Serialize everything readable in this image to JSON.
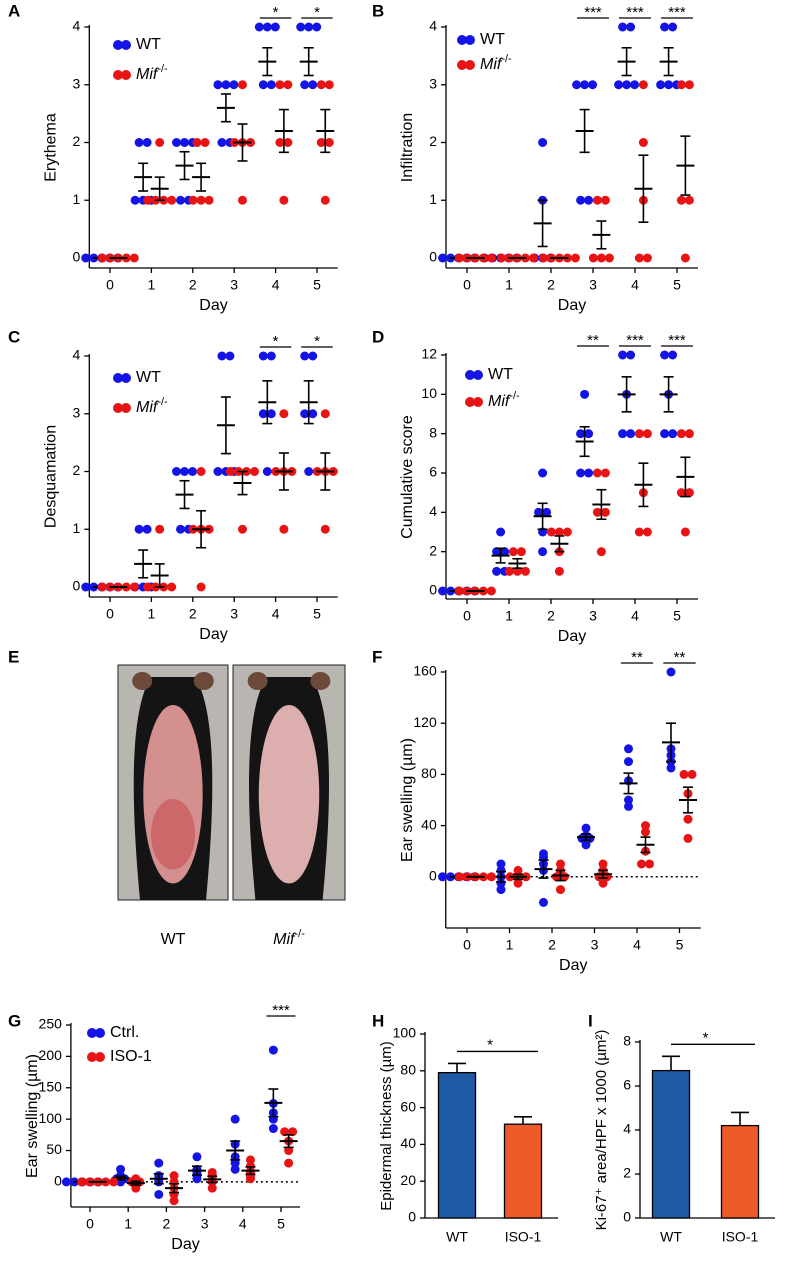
{
  "chart_data": [
    {
      "type": "scatter",
      "panel": "A",
      "ylabel": "Erythema",
      "xlabel": "Day",
      "categories": [
        "0",
        "1",
        "2",
        "3",
        "4",
        "5"
      ],
      "ylim": [
        0,
        4
      ],
      "yticks": [
        0,
        1,
        2,
        3,
        4
      ],
      "series": [
        {
          "name": "WT",
          "color": "#1414e6",
          "points": [
            [
              0,
              0,
              0,
              0,
              0
            ],
            [
              1,
              1,
              1,
              2,
              2
            ],
            [
              1,
              1,
              2,
              2,
              2
            ],
            [
              2,
              2,
              3,
              3,
              3
            ],
            [
              3,
              3,
              4,
              4,
              4
            ],
            [
              3,
              3,
              4,
              4,
              4
            ]
          ],
          "mean": [
            0,
            1.4,
            1.6,
            2.6,
            3.4,
            3.4
          ],
          "sem": [
            0,
            0.24,
            0.24,
            0.24,
            0.24,
            0.24
          ]
        },
        {
          "name": "Mif",
          "superscript": "-/-",
          "color": "#e81414",
          "points": [
            [
              0,
              0,
              0,
              0,
              0
            ],
            [
              1,
              1,
              1,
              1,
              2
            ],
            [
              1,
              1,
              1,
              2,
              2
            ],
            [
              1,
              2,
              2,
              2,
              3
            ],
            [
              1,
              2,
              2,
              3,
              3
            ],
            [
              1,
              2,
              2,
              3,
              3
            ]
          ],
          "mean": [
            0,
            1.2,
            1.4,
            2.0,
            2.2,
            2.2
          ],
          "sem": [
            0,
            0.2,
            0.24,
            0.32,
            0.37,
            0.37
          ]
        }
      ],
      "significance": [
        null,
        null,
        null,
        null,
        "*",
        "*"
      ]
    },
    {
      "type": "scatter",
      "panel": "B",
      "ylabel": "Infiltration",
      "xlabel": "Day",
      "categories": [
        "0",
        "1",
        "2",
        "3",
        "4",
        "5"
      ],
      "ylim": [
        0,
        4
      ],
      "yticks": [
        0,
        1,
        2,
        3,
        4
      ],
      "series": [
        {
          "name": "WT",
          "color": "#1414e6",
          "points": [
            [
              0,
              0,
              0,
              0,
              0
            ],
            [
              0,
              0,
              0,
              0,
              0
            ],
            [
              0,
              0,
              0,
              1,
              2
            ],
            [
              1,
              1,
              3,
              3,
              3
            ],
            [
              3,
              3,
              3,
              4,
              4
            ],
            [
              3,
              3,
              3,
              4,
              4
            ]
          ],
          "mean": [
            0,
            0,
            0.6,
            2.2,
            3.4,
            3.4
          ],
          "sem": [
            0,
            0,
            0.4,
            0.37,
            0.24,
            0.24
          ]
        },
        {
          "name": "Mif",
          "superscript": "-/-",
          "color": "#e81414",
          "points": [
            [
              0,
              0,
              0,
              0,
              0
            ],
            [
              0,
              0,
              0,
              0,
              0
            ],
            [
              0,
              0,
              0,
              0,
              0
            ],
            [
              0,
              0,
              0,
              1,
              1
            ],
            [
              0,
              0,
              1,
              2,
              3
            ],
            [
              0,
              1,
              1,
              3,
              3
            ]
          ],
          "mean": [
            0,
            0,
            0,
            0.4,
            1.2,
            1.6
          ],
          "sem": [
            0,
            0,
            0,
            0.24,
            0.58,
            0.51
          ]
        }
      ],
      "significance": [
        null,
        null,
        null,
        "***",
        "***",
        "***"
      ]
    },
    {
      "type": "scatter",
      "panel": "C",
      "ylabel": "Desquamation",
      "xlabel": "Day",
      "categories": [
        "0",
        "1",
        "2",
        "3",
        "4",
        "5"
      ],
      "ylim": [
        0,
        4
      ],
      "yticks": [
        0,
        1,
        2,
        3,
        4
      ],
      "series": [
        {
          "name": "WT",
          "color": "#1414e6",
          "points": [
            [
              0,
              0,
              0,
              0,
              0
            ],
            [
              0,
              0,
              0,
              1,
              1
            ],
            [
              1,
              1,
              2,
              2,
              2
            ],
            [
              2,
              2,
              2,
              4,
              4
            ],
            [
              2,
              3,
              3,
              4,
              4
            ],
            [
              2,
              3,
              3,
              4,
              4
            ]
          ],
          "mean": [
            0,
            0.4,
            1.6,
            2.8,
            3.2,
            3.2
          ],
          "sem": [
            0,
            0.24,
            0.24,
            0.49,
            0.37,
            0.37
          ]
        },
        {
          "name": "Mif",
          "superscript": "-/-",
          "color": "#e81414",
          "points": [
            [
              0,
              0,
              0,
              0,
              0
            ],
            [
              0,
              0,
              0,
              0,
              1
            ],
            [
              0,
              1,
              1,
              1,
              2
            ],
            [
              1,
              2,
              2,
              2,
              2
            ],
            [
              1,
              2,
              2,
              2,
              3
            ],
            [
              1,
              2,
              2,
              2,
              3
            ]
          ],
          "mean": [
            0,
            0.2,
            1.0,
            1.8,
            2.0,
            2.0
          ],
          "sem": [
            0,
            0.2,
            0.32,
            0.2,
            0.32,
            0.32
          ]
        }
      ],
      "significance": [
        null,
        null,
        null,
        null,
        "*",
        "*"
      ]
    },
    {
      "type": "scatter",
      "panel": "D",
      "ylabel": "Cumulative score",
      "xlabel": "Day",
      "categories": [
        "0",
        "1",
        "2",
        "3",
        "4",
        "5"
      ],
      "ylim": [
        0,
        12
      ],
      "yticks": [
        0,
        2,
        4,
        6,
        8,
        10,
        12
      ],
      "series": [
        {
          "name": "WT",
          "color": "#1414e6",
          "points": [
            [
              0,
              0,
              0,
              0,
              0
            ],
            [
              1,
              1,
              2,
              2,
              3
            ],
            [
              2,
              3,
              4,
              4,
              6
            ],
            [
              6,
              6,
              8,
              8,
              10
            ],
            [
              8,
              8,
              10,
              12,
              12
            ],
            [
              8,
              8,
              10,
              12,
              12
            ]
          ],
          "mean": [
            0,
            1.8,
            3.8,
            7.6,
            10,
            10
          ],
          "sem": [
            0,
            0.37,
            0.66,
            0.75,
            0.89,
            0.89
          ]
        },
        {
          "name": "Mif",
          "superscript": "-/-",
          "color": "#e81414",
          "points": [
            [
              0,
              0,
              0,
              0,
              0
            ],
            [
              1,
              1,
              1,
              2,
              2
            ],
            [
              1,
              2,
              3,
              3,
              3
            ],
            [
              2,
              4,
              4,
              6,
              6
            ],
            [
              3,
              3,
              5,
              8,
              8
            ],
            [
              3,
              5,
              5,
              8,
              8
            ]
          ],
          "mean": [
            0,
            1.4,
            2.4,
            4.4,
            5.4,
            5.8
          ],
          "sem": [
            0,
            0.24,
            0.4,
            0.75,
            1.1,
            1.0
          ]
        }
      ],
      "significance": [
        null,
        null,
        null,
        "**",
        "***",
        "***"
      ]
    },
    {
      "type": "image",
      "panel": "E",
      "labels": [
        {
          "name": "WT"
        },
        {
          "name": "Mif",
          "superscript": "-/-"
        }
      ]
    },
    {
      "type": "scatter",
      "panel": "F",
      "ylabel": "Ear swelling (µm)",
      "xlabel": "Day",
      "categories": [
        "0",
        "1",
        "2",
        "3",
        "4",
        "5"
      ],
      "ylim": [
        -40,
        160
      ],
      "yticks": [
        0,
        40,
        80,
        120,
        160
      ],
      "hline": 0,
      "series": [
        {
          "name": "WT",
          "color": "#1414e6",
          "points": [
            [
              0,
              0,
              0,
              0,
              0
            ],
            [
              -10,
              -5,
              0,
              5,
              10
            ],
            [
              -20,
              5,
              10,
              15,
              18
            ],
            [
              25,
              30,
              30,
              32,
              38
            ],
            [
              55,
              60,
              75,
              90,
              100
            ],
            [
              85,
              90,
              95,
              100,
              160
            ]
          ],
          "mean": [
            0,
            0,
            6,
            31,
            73,
            105
          ],
          "sem": [
            0,
            4,
            7,
            2.5,
            8,
            15
          ]
        },
        {
          "name": "Mif",
          "superscript": "-/-",
          "color": "#e81414",
          "points": [
            [
              0,
              0,
              0,
              0,
              0
            ],
            [
              -5,
              0,
              0,
              0,
              5
            ],
            [
              -10,
              0,
              0,
              5,
              10
            ],
            [
              -5,
              0,
              0,
              5,
              10
            ],
            [
              10,
              10,
              20,
              35,
              40
            ],
            [
              30,
              45,
              65,
              80,
              80
            ]
          ],
          "mean": [
            0,
            0,
            1,
            2,
            25,
            60
          ],
          "sem": [
            0,
            2,
            4,
            3,
            6,
            10
          ]
        }
      ],
      "significance": [
        null,
        null,
        null,
        null,
        "**",
        "**"
      ]
    },
    {
      "type": "scatter",
      "panel": "G",
      "ylabel": "Ear swelling (µm)",
      "xlabel": "Day",
      "categories": [
        "0",
        "1",
        "2",
        "3",
        "4",
        "5"
      ],
      "ylim": [
        -40,
        250
      ],
      "yticks": [
        0,
        50,
        100,
        150,
        200,
        250
      ],
      "hline": 0,
      "series": [
        {
          "name": "Ctrl.",
          "color": "#1414e6",
          "points": [
            [
              0,
              0,
              0,
              0,
              0
            ],
            [
              0,
              5,
              5,
              10,
              20
            ],
            [
              -20,
              0,
              5,
              10,
              30
            ],
            [
              5,
              10,
              15,
              20,
              40
            ],
            [
              20,
              30,
              40,
              60,
              100
            ],
            [
              85,
              100,
              110,
              125,
              210
            ]
          ],
          "mean": [
            0,
            6,
            5,
            18,
            50,
            126
          ],
          "sem": [
            0,
            3,
            8,
            7,
            15,
            22
          ]
        },
        {
          "name": "ISO-1",
          "color": "#e81414",
          "points": [
            [
              0,
              0,
              0,
              0,
              0
            ],
            [
              -10,
              -5,
              0,
              0,
              5
            ],
            [
              -30,
              -20,
              -10,
              0,
              10
            ],
            [
              -10,
              0,
              5,
              10,
              15
            ],
            [
              5,
              10,
              15,
              25,
              35
            ],
            [
              30,
              50,
              65,
              80,
              80
            ]
          ],
          "mean": [
            0,
            -2,
            -10,
            4,
            18,
            65
          ],
          "sem": [
            0,
            3,
            7,
            5,
            6,
            10
          ]
        }
      ],
      "significance": [
        null,
        null,
        null,
        null,
        null,
        "***"
      ]
    },
    {
      "type": "bar",
      "panel": "H",
      "ylabel": "Epidermal thickness (µm)",
      "categories": [
        "WT",
        "ISO-1"
      ],
      "values": [
        79,
        51
      ],
      "errors": [
        5,
        4
      ],
      "colors": [
        "#1f5aa6",
        "#ef5a2a"
      ],
      "ylim": [
        0,
        100
      ],
      "yticks": [
        0,
        20,
        40,
        60,
        80,
        100
      ],
      "significance": "*"
    },
    {
      "type": "bar",
      "panel": "I",
      "ylabel": "Ki-67⁺ area/HPF x 1000 (µm²)",
      "categories": [
        "WT",
        "ISO-1"
      ],
      "values": [
        6.7,
        4.2
      ],
      "errors": [
        0.65,
        0.6
      ],
      "colors": [
        "#1f5aa6",
        "#ef5a2a"
      ],
      "ylim": [
        0,
        8
      ],
      "yticks": [
        0,
        2,
        4,
        6,
        8
      ],
      "significance": "*"
    }
  ]
}
